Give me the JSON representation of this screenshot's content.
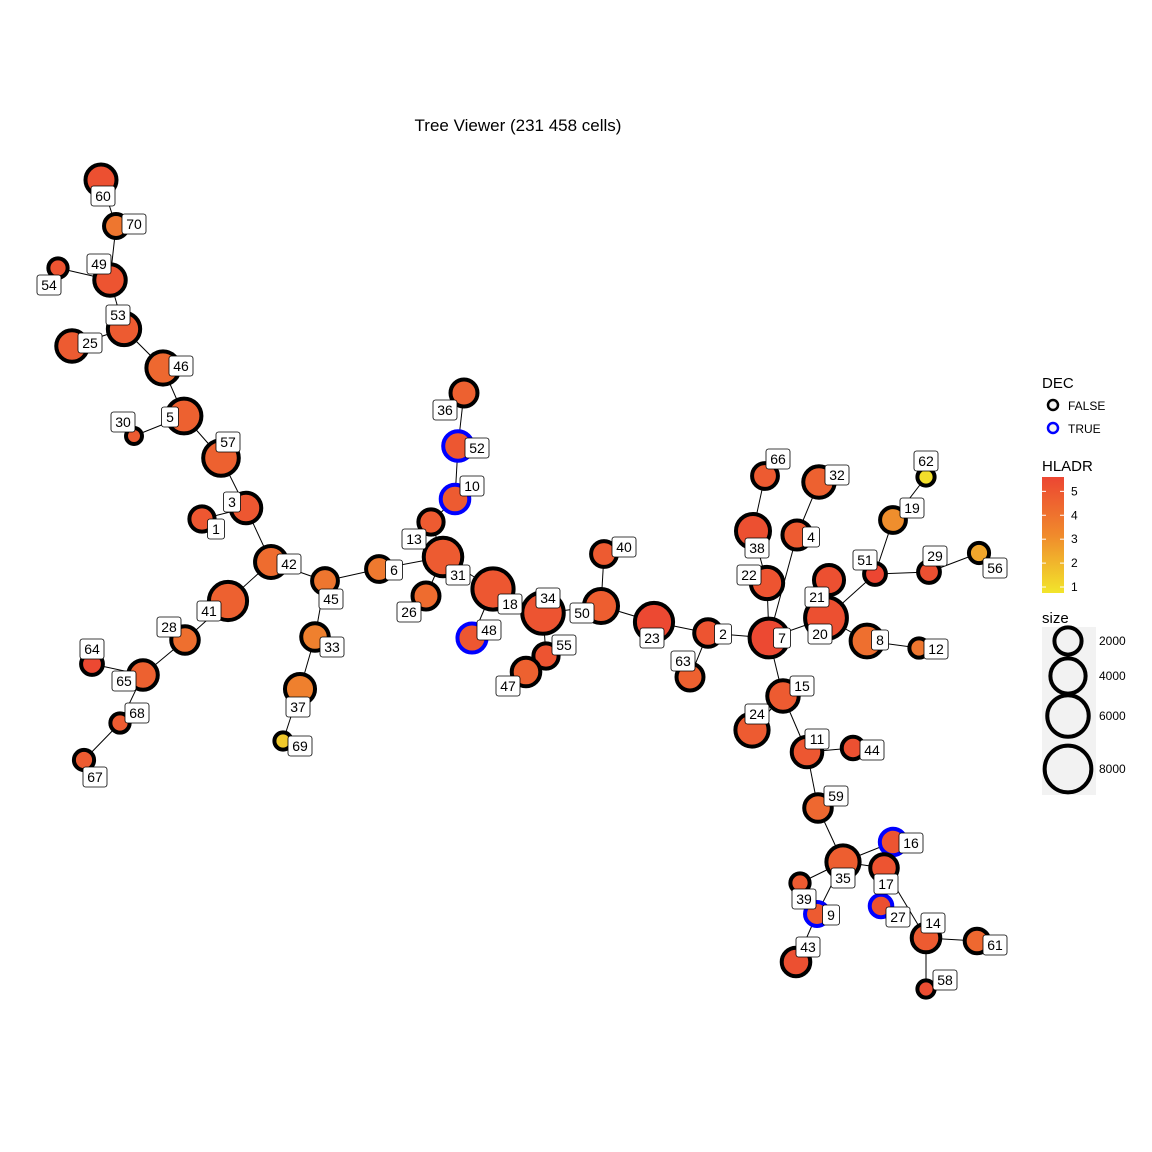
{
  "chart_data": {
    "type": "network",
    "title": "Tree Viewer (231 458 cells)",
    "legend": {
      "dec": {
        "title": "DEC",
        "entries": [
          {
            "label": "FALSE",
            "color": "#000000"
          },
          {
            "label": "TRUE",
            "color": "#0000ff"
          }
        ]
      },
      "hladr": {
        "title": "HLADR",
        "ticks": [
          "5",
          "4",
          "3",
          "2",
          "1"
        ],
        "colors": {
          "low": "#f2e52b",
          "mid": "#f08a2c",
          "high": "#ec4632"
        }
      },
      "size": {
        "title": "size",
        "ticks": [
          "2000",
          "4000",
          "6000",
          "8000"
        ]
      }
    },
    "colors": {
      "edge": "#000000",
      "false_border": "#000000",
      "true_border": "#0000ff"
    },
    "nodes": [
      {
        "id": "60",
        "hladr": 5.3,
        "size": 2500,
        "dec": false
      },
      {
        "id": "70",
        "hladr": 4.2,
        "size": 1200,
        "dec": false
      },
      {
        "id": "49",
        "hladr": 5.2,
        "size": 2600,
        "dec": false
      },
      {
        "id": "54",
        "hladr": 5.2,
        "size": 600,
        "dec": false
      },
      {
        "id": "53",
        "hladr": 5.0,
        "size": 2800,
        "dec": false
      },
      {
        "id": "25",
        "hladr": 5.0,
        "size": 2600,
        "dec": false
      },
      {
        "id": "46",
        "hladr": 4.6,
        "size": 3000,
        "dec": false
      },
      {
        "id": "30",
        "hladr": 5.0,
        "size": 300,
        "dec": false
      },
      {
        "id": "5",
        "hladr": 4.8,
        "size": 3400,
        "dec": false
      },
      {
        "id": "57",
        "hladr": 4.8,
        "size": 3600,
        "dec": false
      },
      {
        "id": "3",
        "hladr": 5.1,
        "size": 2400,
        "dec": false
      },
      {
        "id": "1",
        "hladr": 5.1,
        "size": 1400,
        "dec": false
      },
      {
        "id": "42",
        "hladr": 4.5,
        "size": 2700,
        "dec": false
      },
      {
        "id": "45",
        "hladr": 4.2,
        "size": 1500,
        "dec": false
      },
      {
        "id": "33",
        "hladr": 3.9,
        "size": 1800,
        "dec": false
      },
      {
        "id": "37",
        "hladr": 3.9,
        "size": 2300,
        "dec": false
      },
      {
        "id": "69",
        "hladr": 1.8,
        "size": 400,
        "dec": false
      },
      {
        "id": "41",
        "hladr": 4.8,
        "size": 4300,
        "dec": false
      },
      {
        "id": "28",
        "hladr": 4.4,
        "size": 1800,
        "dec": false
      },
      {
        "id": "65",
        "hladr": 4.8,
        "size": 2200,
        "dec": false
      },
      {
        "id": "64",
        "hladr": 5.5,
        "size": 900,
        "dec": false
      },
      {
        "id": "68",
        "hladr": 5.0,
        "size": 600,
        "dec": false
      },
      {
        "id": "67",
        "hladr": 5.0,
        "size": 700,
        "dec": false
      },
      {
        "id": "6",
        "hladr": 4.1,
        "size": 1500,
        "dec": false
      },
      {
        "id": "31",
        "hladr": 5.0,
        "size": 4400,
        "dec": false
      },
      {
        "id": "13",
        "hladr": 5.0,
        "size": 1400,
        "dec": false
      },
      {
        "id": "10",
        "hladr": 5.0,
        "size": 2000,
        "dec": true
      },
      {
        "id": "52",
        "hladr": 5.1,
        "size": 2200,
        "dec": true
      },
      {
        "id": "36",
        "hladr": 4.8,
        "size": 1700,
        "dec": false
      },
      {
        "id": "26",
        "hladr": 4.5,
        "size": 1700,
        "dec": false
      },
      {
        "id": "18",
        "hladr": 5.1,
        "size": 5200,
        "dec": false
      },
      {
        "id": "48",
        "hladr": 5.1,
        "size": 2100,
        "dec": true
      },
      {
        "id": "34",
        "hladr": 5.2,
        "size": 5300,
        "dec": false
      },
      {
        "id": "55",
        "hladr": 5.2,
        "size": 1400,
        "dec": false
      },
      {
        "id": "47",
        "hladr": 4.8,
        "size": 2000,
        "dec": false
      },
      {
        "id": "50",
        "hladr": 4.9,
        "size": 3200,
        "dec": false
      },
      {
        "id": "40",
        "hladr": 5.0,
        "size": 1500,
        "dec": false
      },
      {
        "id": "23",
        "hladr": 5.5,
        "size": 4300,
        "dec": false
      },
      {
        "id": "2",
        "hladr": 5.2,
        "size": 1800,
        "dec": false
      },
      {
        "id": "63",
        "hladr": 4.8,
        "size": 1700,
        "dec": false
      },
      {
        "id": "7",
        "hladr": 5.5,
        "size": 4500,
        "dec": false
      },
      {
        "id": "22",
        "hladr": 5.2,
        "size": 2800,
        "dec": false
      },
      {
        "id": "38",
        "hladr": 5.3,
        "size": 3200,
        "dec": false
      },
      {
        "id": "66",
        "hladr": 5.0,
        "size": 1500,
        "dec": false
      },
      {
        "id": "4",
        "hladr": 5.0,
        "size": 2100,
        "dec": false
      },
      {
        "id": "32",
        "hladr": 4.8,
        "size": 2600,
        "dec": false
      },
      {
        "id": "20",
        "hladr": 5.3,
        "size": 5400,
        "dec": false
      },
      {
        "id": "21",
        "hladr": 5.3,
        "size": 2300,
        "dec": false
      },
      {
        "id": "51",
        "hladr": 5.6,
        "size": 900,
        "dec": false
      },
      {
        "id": "19",
        "hladr": 3.5,
        "size": 1500,
        "dec": false
      },
      {
        "id": "62",
        "hladr": 1.2,
        "size": 400,
        "dec": false
      },
      {
        "id": "29",
        "hladr": 5.3,
        "size": 900,
        "dec": false
      },
      {
        "id": "56",
        "hladr": 2.8,
        "size": 700,
        "dec": false
      },
      {
        "id": "8",
        "hladr": 4.4,
        "size": 2900,
        "dec": false
      },
      {
        "id": "12",
        "hladr": 4.2,
        "size": 600,
        "dec": false
      },
      {
        "id": "15",
        "hladr": 5.0,
        "size": 2600,
        "dec": false
      },
      {
        "id": "24",
        "hladr": 5.0,
        "size": 3000,
        "dec": false
      },
      {
        "id": "11",
        "hladr": 5.1,
        "size": 2400,
        "dec": false
      },
      {
        "id": "44",
        "hladr": 5.3,
        "size": 1000,
        "dec": false
      },
      {
        "id": "59",
        "hladr": 4.6,
        "size": 1800,
        "dec": false
      },
      {
        "id": "35",
        "hladr": 4.9,
        "size": 3000,
        "dec": false
      },
      {
        "id": "16",
        "hladr": 5.2,
        "size": 1600,
        "dec": true
      },
      {
        "id": "17",
        "hladr": 5.2,
        "size": 1800,
        "dec": false
      },
      {
        "id": "27",
        "hladr": 5.3,
        "size": 1000,
        "dec": true
      },
      {
        "id": "39",
        "hladr": 5.0,
        "size": 600,
        "dec": false
      },
      {
        "id": "9",
        "hladr": 5.0,
        "size": 1200,
        "dec": true
      },
      {
        "id": "43",
        "hladr": 5.3,
        "size": 2000,
        "dec": false
      },
      {
        "id": "14",
        "hladr": 5.0,
        "size": 2000,
        "dec": false
      },
      {
        "id": "61",
        "hladr": 4.6,
        "size": 1300,
        "dec": false
      },
      {
        "id": "58",
        "hladr": 5.4,
        "size": 400,
        "dec": false
      }
    ],
    "edges": [
      [
        "60",
        "70"
      ],
      [
        "70",
        "49"
      ],
      [
        "49",
        "54"
      ],
      [
        "49",
        "53"
      ],
      [
        "53",
        "25"
      ],
      [
        "53",
        "46"
      ],
      [
        "46",
        "5"
      ],
      [
        "5",
        "30"
      ],
      [
        "5",
        "57"
      ],
      [
        "57",
        "3"
      ],
      [
        "3",
        "1"
      ],
      [
        "3",
        "42"
      ],
      [
        "42",
        "45"
      ],
      [
        "42",
        "41"
      ],
      [
        "45",
        "33"
      ],
      [
        "33",
        "37"
      ],
      [
        "37",
        "69"
      ],
      [
        "45",
        "6"
      ],
      [
        "41",
        "28"
      ],
      [
        "28",
        "65"
      ],
      [
        "65",
        "64"
      ],
      [
        "65",
        "68"
      ],
      [
        "68",
        "67"
      ],
      [
        "6",
        "31"
      ],
      [
        "31",
        "13"
      ],
      [
        "13",
        "10"
      ],
      [
        "10",
        "52"
      ],
      [
        "52",
        "36"
      ],
      [
        "31",
        "26"
      ],
      [
        "31",
        "18"
      ],
      [
        "18",
        "48"
      ],
      [
        "18",
        "34"
      ],
      [
        "34",
        "55"
      ],
      [
        "55",
        "47"
      ],
      [
        "34",
        "50"
      ],
      [
        "50",
        "40"
      ],
      [
        "50",
        "23"
      ],
      [
        "23",
        "2"
      ],
      [
        "2",
        "63"
      ],
      [
        "2",
        "7"
      ],
      [
        "7",
        "22"
      ],
      [
        "22",
        "38"
      ],
      [
        "38",
        "66"
      ],
      [
        "7",
        "4"
      ],
      [
        "4",
        "32"
      ],
      [
        "7",
        "20"
      ],
      [
        "20",
        "21"
      ],
      [
        "20",
        "51"
      ],
      [
        "51",
        "19"
      ],
      [
        "19",
        "62"
      ],
      [
        "51",
        "29"
      ],
      [
        "29",
        "56"
      ],
      [
        "20",
        "8"
      ],
      [
        "8",
        "12"
      ],
      [
        "7",
        "15"
      ],
      [
        "15",
        "24"
      ],
      [
        "15",
        "11"
      ],
      [
        "11",
        "44"
      ],
      [
        "11",
        "59"
      ],
      [
        "59",
        "35"
      ],
      [
        "35",
        "16"
      ],
      [
        "35",
        "17"
      ],
      [
        "17",
        "27"
      ],
      [
        "35",
        "39"
      ],
      [
        "35",
        "9"
      ],
      [
        "9",
        "43"
      ],
      [
        "17",
        "14"
      ],
      [
        "14",
        "61"
      ],
      [
        "14",
        "58"
      ]
    ]
  }
}
